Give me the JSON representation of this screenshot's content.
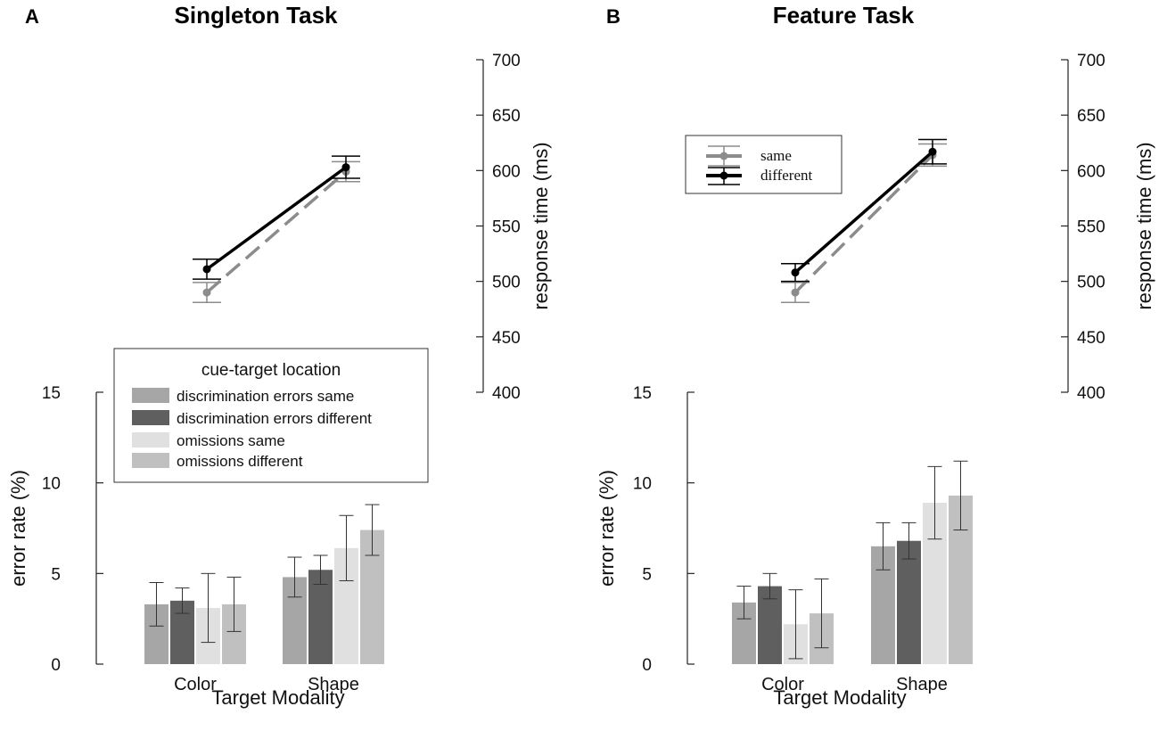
{
  "figure": {
    "panels": [
      {
        "letter": "A",
        "title": "Singleton Task"
      },
      {
        "letter": "B",
        "title": "Feature Task"
      }
    ]
  },
  "colors": {
    "disc_same": "#a6a6a6",
    "disc_diff": "#5f5f5f",
    "omis_same": "#e0e0e0",
    "omis_diff": "#c0c0c0",
    "rt_same": "#8c8c8c",
    "rt_diff": "#000000"
  },
  "legends": {
    "bars": {
      "title": "cue-target location",
      "entries": [
        "discrimination errors same",
        "discrimination errors different",
        "omissions same",
        "omissions different"
      ]
    },
    "rt": {
      "entries": [
        "same",
        "different"
      ]
    }
  },
  "chart_data": [
    {
      "panel": "A",
      "type": "bar",
      "title": "Singleton Task",
      "xlabel": "Target Modality",
      "ylabel": "error rate (%)",
      "ylim": [
        0,
        15
      ],
      "yticks": [
        "0",
        "5",
        "10",
        "15"
      ],
      "categories": [
        "Color",
        "Shape"
      ],
      "series": [
        {
          "name": "discrimination errors same",
          "values": [
            3.3,
            4.8
          ],
          "err": [
            1.2,
            1.1
          ]
        },
        {
          "name": "discrimination errors different",
          "values": [
            3.5,
            5.2
          ],
          "err": [
            0.7,
            0.8
          ]
        },
        {
          "name": "omissions same",
          "values": [
            3.1,
            6.4
          ],
          "err": [
            1.9,
            1.8
          ]
        },
        {
          "name": "omissions different",
          "values": [
            3.3,
            7.4
          ],
          "err": [
            1.5,
            1.4
          ]
        }
      ]
    },
    {
      "panel": "A",
      "type": "line",
      "ylabel": "response time (ms)",
      "ylim": [
        400,
        700
      ],
      "yticks": [
        "400",
        "450",
        "500",
        "550",
        "600",
        "650",
        "700"
      ],
      "categories": [
        "Color",
        "Shape"
      ],
      "series": [
        {
          "name": "same",
          "values": [
            490,
            599
          ],
          "err": [
            9,
            9
          ]
        },
        {
          "name": "different",
          "values": [
            511,
            603
          ],
          "err": [
            9,
            10
          ]
        }
      ]
    },
    {
      "panel": "B",
      "type": "bar",
      "title": "Feature Task",
      "xlabel": "Target Modality",
      "ylabel": "error rate (%)",
      "ylim": [
        0,
        15
      ],
      "yticks": [
        "0",
        "5",
        "10",
        "15"
      ],
      "categories": [
        "Color",
        "Shape"
      ],
      "series": [
        {
          "name": "discrimination errors same",
          "values": [
            3.4,
            6.5
          ],
          "err": [
            0.9,
            1.3
          ]
        },
        {
          "name": "discrimination errors different",
          "values": [
            4.3,
            6.8
          ],
          "err": [
            0.7,
            1.0
          ]
        },
        {
          "name": "omissions same",
          "values": [
            2.2,
            8.9
          ],
          "err": [
            1.9,
            2.0
          ]
        },
        {
          "name": "omissions different",
          "values": [
            2.8,
            9.3
          ],
          "err": [
            1.9,
            1.9
          ]
        }
      ]
    },
    {
      "panel": "B",
      "type": "line",
      "ylabel": "response time (ms)",
      "ylim": [
        400,
        700
      ],
      "yticks": [
        "400",
        "450",
        "500",
        "550",
        "600",
        "650",
        "700"
      ],
      "categories": [
        "Color",
        "Shape"
      ],
      "series": [
        {
          "name": "same",
          "values": [
            490,
            614
          ],
          "err": [
            9,
            10
          ]
        },
        {
          "name": "different",
          "values": [
            508,
            617
          ],
          "err": [
            8,
            11
          ]
        }
      ]
    }
  ]
}
